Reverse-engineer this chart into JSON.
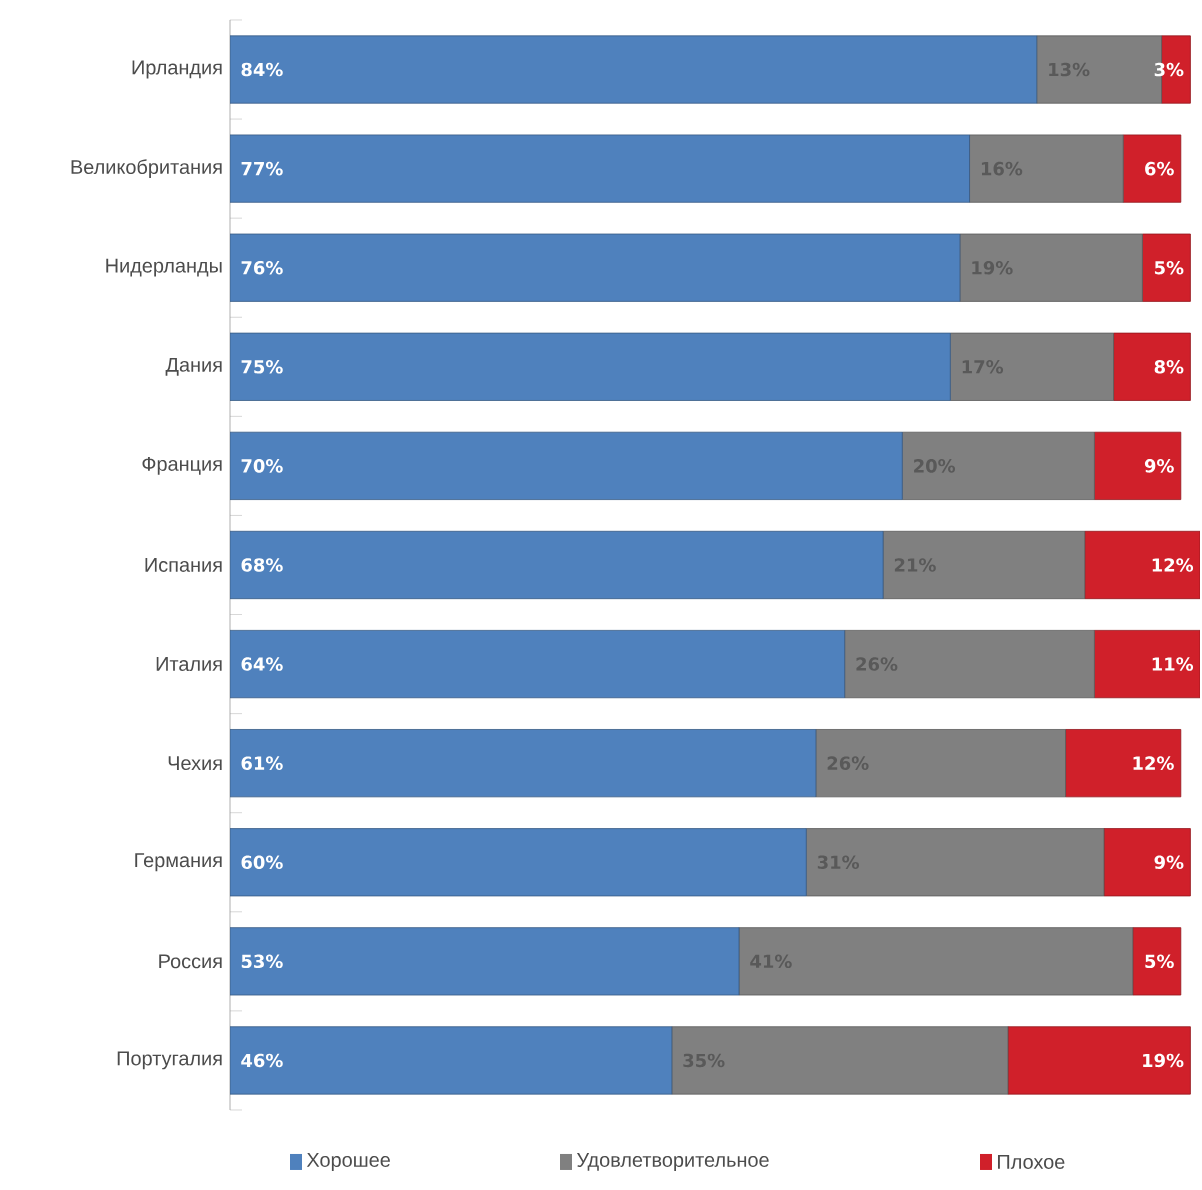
{
  "chart_data": {
    "type": "bar",
    "orientation": "horizontal",
    "stacked": true,
    "categories": [
      "Ирландия",
      "Великобритания",
      "Нидерланды",
      "Дания",
      "Франция",
      "Испания",
      "Италия",
      "Чехия",
      "Германия",
      "Россия",
      "Португалия"
    ],
    "series": [
      {
        "name": "Хорошее",
        "color": "#4f81bd",
        "values": [
          84,
          77,
          76,
          75,
          70,
          68,
          64,
          61,
          60,
          53,
          46
        ],
        "value_labels": [
          "84%",
          "77%",
          "76%",
          "75%",
          "70%",
          "68%",
          "64%",
          "61%",
          "60%",
          "53%",
          "46%"
        ]
      },
      {
        "name": "Удовлетворительное",
        "color": "#808080",
        "values": [
          13,
          16,
          19,
          17,
          20,
          21,
          26,
          26,
          31,
          41,
          35
        ],
        "value_labels": [
          "13%",
          "16%",
          "19%",
          "17%",
          "20%",
          "21%",
          "26%",
          "26%",
          "31%",
          "41%",
          "35%"
        ]
      },
      {
        "name": "Плохое",
        "color": "#d0202a",
        "values": [
          3,
          6,
          5,
          8,
          9,
          12,
          11,
          12,
          9,
          5,
          19
        ],
        "value_labels": [
          "3%",
          "6%",
          "5%",
          "8%",
          "9%",
          "12%",
          "11%",
          "12%",
          "9%",
          "5%",
          "19%"
        ]
      }
    ],
    "legend": "bottom"
  }
}
